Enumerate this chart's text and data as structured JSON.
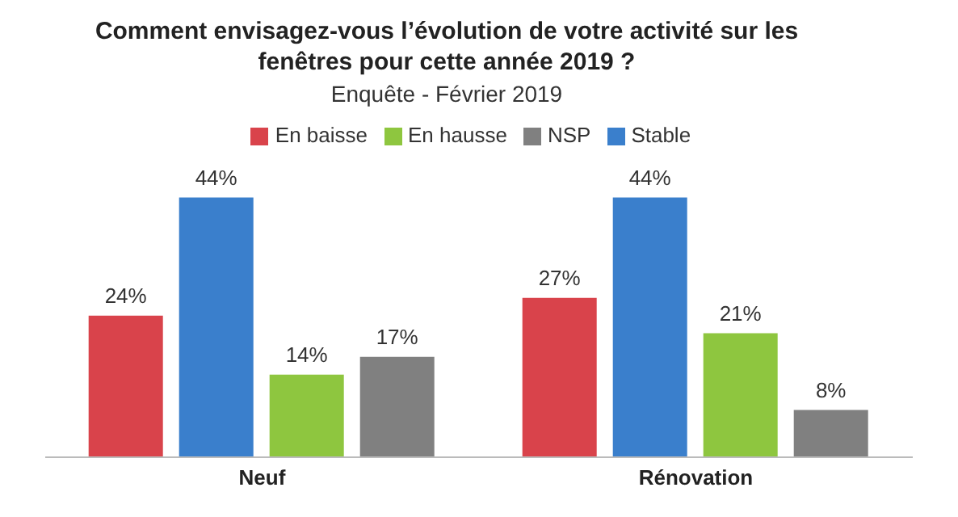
{
  "chart_data": {
    "type": "bar",
    "title": "Comment envisagez-vous l’évolution de votre activité sur les fenêtres pour cette année 2019 ?",
    "subtitle": "Enquête - Février 2019",
    "categories": [
      "Neuf",
      "Rénovation"
    ],
    "legend": "top",
    "grid": false,
    "series": [
      {
        "name": "En baisse",
        "color": "#d9434b",
        "values": [
          24,
          27
        ],
        "value_labels": [
          "24%",
          "27%"
        ]
      },
      {
        "name": "Stable",
        "color": "#3a7fcc",
        "values": [
          44,
          44
        ],
        "value_labels": [
          "44%",
          "44%"
        ]
      },
      {
        "name": "En hausse",
        "color": "#8ec63f",
        "values": [
          14,
          21
        ],
        "value_labels": [
          "14%",
          "21%"
        ]
      },
      {
        "name": "NSP",
        "color": "#808080",
        "values": [
          17,
          8
        ],
        "value_labels": [
          "17%",
          "8%"
        ]
      }
    ]
  }
}
